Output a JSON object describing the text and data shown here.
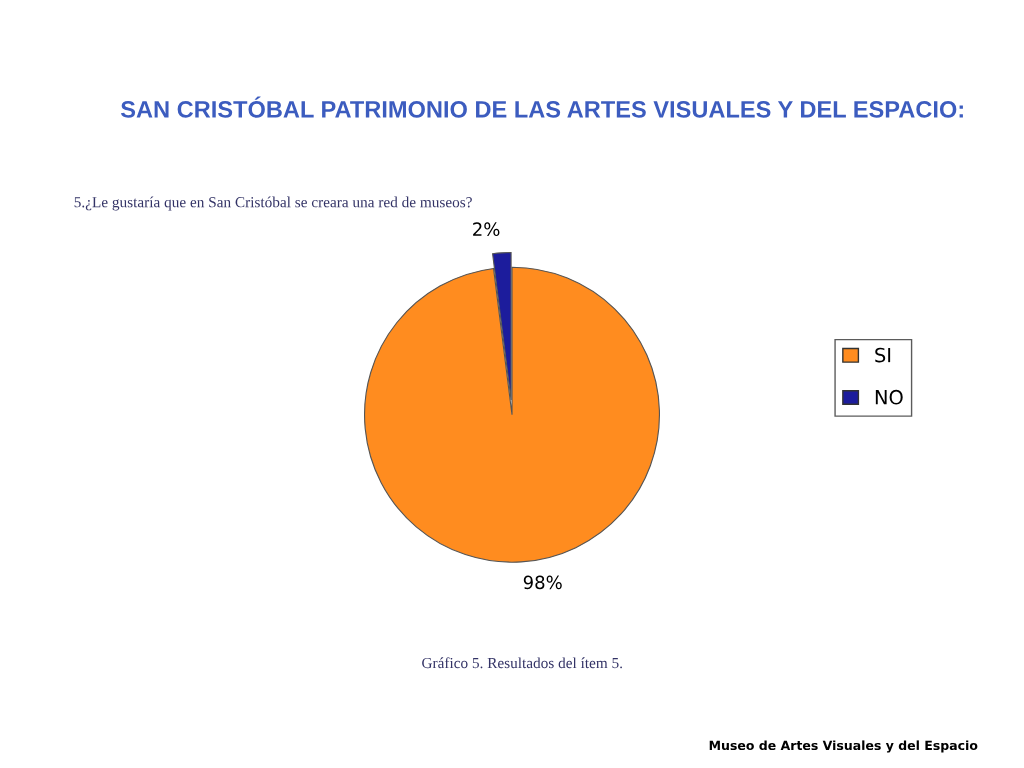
{
  "chart_data": {
    "type": "pie",
    "title": "SAN CRISTÓBAL PATRIMONIO DE LAS ARTES VISUALES Y DEL ESPACIO:",
    "subtitle": "5.¿Le gustaría que en San Cristóbal se creara una red de museos?",
    "categories": [
      "SI",
      "NO"
    ],
    "values": [
      98,
      2
    ],
    "colors": [
      "#ff8c1f",
      "#1c1c9c"
    ],
    "value_labels": [
      "98%",
      "2%"
    ],
    "legend": "right",
    "annotations": [
      "Gráfico 5. Resultados del ítem 5.",
      "Museo de Artes Visuales y del Espacio"
    ]
  }
}
